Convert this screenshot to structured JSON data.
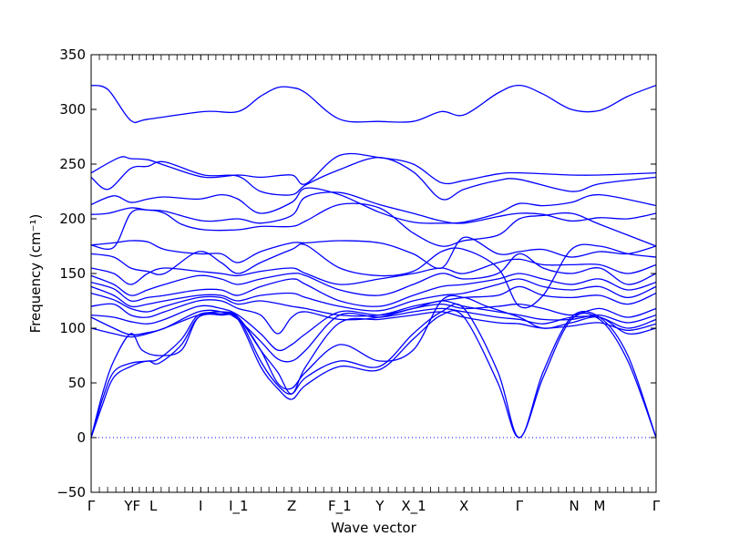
{
  "chart_data": {
    "type": "line",
    "title": "",
    "xlabel": "Wave vector",
    "ylabel": "Frequency (cm⁻¹)",
    "ylim": [
      -50,
      350
    ],
    "yticks": [
      -50,
      0,
      50,
      100,
      150,
      200,
      250,
      300,
      350
    ],
    "grid": false,
    "legend": "none",
    "series_color": "#0000ff",
    "zero_line_color": "#0000ff",
    "xlim": [
      0,
      1
    ],
    "x_ticks": [
      {
        "label": "Γ",
        "x": 0.0
      },
      {
        "label": "YF",
        "x": 0.073
      },
      {
        "label": "L",
        "x": 0.11
      },
      {
        "label": "I",
        "x": 0.194
      },
      {
        "label": "I_1",
        "x": 0.261
      },
      {
        "label": "Z",
        "x": 0.355
      },
      {
        "label": "F_1",
        "x": 0.44
      },
      {
        "label": "Y",
        "x": 0.511
      },
      {
        "label": "X_1",
        "x": 0.571
      },
      {
        "label": "X",
        "x": 0.66
      },
      {
        "label": "Γ",
        "x": 0.758
      },
      {
        "label": "N",
        "x": 0.855
      },
      {
        "label": "M",
        "x": 0.9
      },
      {
        "label": "Γ",
        "x": 1.0
      }
    ],
    "series": [
      {
        "x": [
          0,
          0.03,
          0.07,
          0.1,
          0.2,
          0.26,
          0.3,
          0.33,
          0.355,
          0.38,
          0.44,
          0.51,
          0.57,
          0.62,
          0.66,
          0.72,
          0.758,
          0.8,
          0.85,
          0.9,
          0.95,
          1.0
        ],
        "values": [
          322,
          318,
          290,
          291,
          298,
          298,
          312,
          320,
          320,
          315,
          291,
          289,
          289,
          298,
          295,
          315,
          322,
          314,
          300,
          299,
          312,
          322
        ]
      },
      {
        "x": [
          0,
          0.05,
          0.07,
          0.1,
          0.13,
          0.2,
          0.26,
          0.3,
          0.355,
          0.38,
          0.44,
          0.51,
          0.57,
          0.62,
          0.66,
          0.72,
          0.758,
          0.85,
          0.9,
          1.0
        ],
        "values": [
          242,
          256,
          255,
          254,
          249,
          238,
          240,
          238,
          240,
          232,
          258,
          256,
          250,
          233,
          235,
          241,
          242,
          240,
          240,
          242
        ]
      },
      {
        "x": [
          0,
          0.03,
          0.07,
          0.1,
          0.13,
          0.2,
          0.26,
          0.3,
          0.355,
          0.38,
          0.44,
          0.51,
          0.57,
          0.62,
          0.66,
          0.72,
          0.758,
          0.85,
          0.9,
          1.0
        ],
        "values": [
          238,
          227,
          246,
          248,
          252,
          240,
          239,
          225,
          222,
          231,
          245,
          256,
          243,
          218,
          227,
          235,
          236,
          225,
          232,
          238
        ]
      },
      {
        "x": [
          0,
          0.04,
          0.07,
          0.1,
          0.13,
          0.19,
          0.23,
          0.26,
          0.3,
          0.355,
          0.38,
          0.44,
          0.51,
          0.57,
          0.62,
          0.66,
          0.72,
          0.758,
          0.8,
          0.85,
          0.9,
          1.0
        ],
        "values": [
          213,
          221,
          215,
          218,
          220,
          218,
          222,
          218,
          205,
          215,
          228,
          222,
          206,
          197,
          196,
          197,
          205,
          214,
          212,
          215,
          222,
          212
        ]
      },
      {
        "x": [
          0,
          0.03,
          0.07,
          0.1,
          0.13,
          0.2,
          0.26,
          0.3,
          0.355,
          0.38,
          0.44,
          0.51,
          0.57,
          0.62,
          0.66,
          0.72,
          0.758,
          0.8,
          0.85,
          0.9,
          0.95,
          1.0
        ],
        "values": [
          204,
          205,
          210,
          208,
          207,
          198,
          200,
          196,
          203,
          220,
          224,
          213,
          205,
          198,
          196,
          202,
          205,
          204,
          198,
          201,
          200,
          205
        ]
      },
      {
        "x": [
          0,
          0.04,
          0.07,
          0.1,
          0.13,
          0.16,
          0.2,
          0.26,
          0.3,
          0.355,
          0.38,
          0.44,
          0.51,
          0.57,
          0.62,
          0.66,
          0.72,
          0.758,
          0.8,
          0.85,
          0.9,
          1.0
        ],
        "values": [
          176,
          174,
          205,
          208,
          205,
          195,
          190,
          190,
          193,
          193,
          198,
          213,
          210,
          187,
          175,
          180,
          185,
          200,
          203,
          205,
          195,
          175
        ]
      },
      {
        "x": [
          0,
          0.04,
          0.07,
          0.1,
          0.13,
          0.19,
          0.23,
          0.26,
          0.3,
          0.355,
          0.38,
          0.44,
          0.51,
          0.57,
          0.62,
          0.66,
          0.72,
          0.758,
          0.8,
          0.85,
          0.9,
          0.95,
          1.0
        ],
        "values": [
          176,
          178,
          180,
          179,
          172,
          168,
          168,
          160,
          170,
          178,
          178,
          180,
          178,
          168,
          155,
          183,
          168,
          170,
          172,
          165,
          170,
          168,
          175
        ]
      },
      {
        "x": [
          0,
          0.04,
          0.07,
          0.1,
          0.13,
          0.19,
          0.23,
          0.26,
          0.3,
          0.355,
          0.38,
          0.44,
          0.51,
          0.57,
          0.62,
          0.66,
          0.72,
          0.758,
          0.8,
          0.85,
          0.9,
          0.95,
          1.0
        ],
        "values": [
          168,
          165,
          155,
          152,
          150,
          170,
          160,
          150,
          160,
          172,
          176,
          155,
          148,
          152,
          170,
          172,
          155,
          120,
          130,
          172,
          175,
          168,
          165
        ]
      },
      {
        "x": [
          0,
          0.04,
          0.07,
          0.1,
          0.13,
          0.19,
          0.23,
          0.26,
          0.3,
          0.355,
          0.38,
          0.44,
          0.51,
          0.57,
          0.62,
          0.66,
          0.72,
          0.758,
          0.8,
          0.85,
          0.9,
          0.95,
          1.0
        ],
        "values": [
          155,
          150,
          140,
          150,
          155,
          152,
          150,
          148,
          152,
          155,
          150,
          140,
          145,
          150,
          155,
          150,
          160,
          163,
          158,
          158,
          158,
          150,
          158
        ]
      },
      {
        "x": [
          0,
          0.04,
          0.07,
          0.1,
          0.13,
          0.19,
          0.23,
          0.26,
          0.3,
          0.355,
          0.38,
          0.44,
          0.51,
          0.57,
          0.62,
          0.66,
          0.72,
          0.758,
          0.8,
          0.85,
          0.9,
          0.95,
          1.0
        ],
        "values": [
          148,
          140,
          130,
          135,
          140,
          148,
          145,
          140,
          145,
          150,
          148,
          135,
          130,
          140,
          150,
          145,
          150,
          168,
          155,
          150,
          155,
          140,
          150
        ]
      },
      {
        "x": [
          0,
          0.04,
          0.07,
          0.1,
          0.13,
          0.19,
          0.23,
          0.26,
          0.3,
          0.355,
          0.38,
          0.44,
          0.51,
          0.57,
          0.62,
          0.66,
          0.72,
          0.758,
          0.8,
          0.85,
          0.9,
          0.95,
          1.0
        ],
        "values": [
          142,
          136,
          125,
          128,
          130,
          135,
          135,
          130,
          138,
          145,
          140,
          125,
          120,
          130,
          138,
          140,
          145,
          150,
          145,
          140,
          145,
          135,
          142
        ]
      },
      {
        "x": [
          0,
          0.04,
          0.07,
          0.1,
          0.13,
          0.19,
          0.23,
          0.26,
          0.3,
          0.355,
          0.38,
          0.44,
          0.51,
          0.57,
          0.62,
          0.66,
          0.72,
          0.758,
          0.8,
          0.85,
          0.9,
          0.95,
          1.0
        ],
        "values": [
          138,
          130,
          120,
          122,
          125,
          130,
          130,
          125,
          130,
          132,
          128,
          120,
          116,
          125,
          130,
          132,
          140,
          145,
          138,
          135,
          138,
          128,
          138
        ]
      },
      {
        "x": [
          0,
          0.04,
          0.07,
          0.1,
          0.13,
          0.19,
          0.23,
          0.26,
          0.3,
          0.355,
          0.38,
          0.44,
          0.51,
          0.57,
          0.62,
          0.66,
          0.72,
          0.758,
          0.8,
          0.85,
          0.9,
          0.95,
          1.0
        ],
        "values": [
          132,
          126,
          118,
          115,
          120,
          128,
          128,
          122,
          125,
          120,
          118,
          112,
          112,
          120,
          125,
          128,
          130,
          138,
          130,
          128,
          130,
          122,
          132
        ]
      },
      {
        "x": [
          0,
          0.04,
          0.07,
          0.1,
          0.13,
          0.19,
          0.23,
          0.26,
          0.3,
          0.33,
          0.355,
          0.38,
          0.44,
          0.51,
          0.57,
          0.62,
          0.66,
          0.72,
          0.758,
          0.8,
          0.85,
          0.9,
          0.95,
          1.0
        ],
        "values": [
          120,
          122,
          112,
          110,
          115,
          125,
          125,
          118,
          112,
          95,
          110,
          115,
          108,
          110,
          118,
          122,
          118,
          120,
          122,
          118,
          112,
          118,
          110,
          118
        ]
      },
      {
        "x": [
          0,
          0.04,
          0.07,
          0.1,
          0.13,
          0.19,
          0.23,
          0.26,
          0.3,
          0.33,
          0.355,
          0.38,
          0.44,
          0.51,
          0.57,
          0.62,
          0.66,
          0.72,
          0.758,
          0.8,
          0.85,
          0.9,
          0.95,
          1.0
        ],
        "values": [
          112,
          110,
          106,
          104,
          108,
          120,
          118,
          112,
          95,
          80,
          85,
          95,
          115,
          112,
          118,
          125,
          120,
          115,
          112,
          108,
          108,
          112,
          105,
          112
        ]
      },
      {
        "x": [
          0,
          0.04,
          0.07,
          0.1,
          0.13,
          0.19,
          0.23,
          0.26,
          0.3,
          0.33,
          0.355,
          0.38,
          0.44,
          0.51,
          0.57,
          0.62,
          0.66,
          0.72,
          0.758,
          0.8,
          0.85,
          0.9,
          0.95,
          1.0
        ],
        "values": [
          110,
          100,
          94,
          96,
          100,
          115,
          115,
          108,
          88,
          72,
          70,
          80,
          112,
          110,
          115,
          118,
          115,
          110,
          108,
          104,
          110,
          110,
          100,
          108
        ]
      },
      {
        "x": [
          0,
          0.04,
          0.07,
          0.1,
          0.13,
          0.19,
          0.23,
          0.26,
          0.3,
          0.33,
          0.355,
          0.38,
          0.44,
          0.51,
          0.57,
          0.62,
          0.66,
          0.72,
          0.758,
          0.8,
          0.85,
          0.9,
          0.95,
          1.0
        ],
        "values": [
          100,
          95,
          92,
          95,
          100,
          112,
          115,
          110,
          80,
          60,
          40,
          65,
          105,
          108,
          112,
          115,
          110,
          105,
          104,
          100,
          102,
          105,
          98,
          104
        ]
      },
      {
        "x": [
          0,
          0.02,
          0.04,
          0.07,
          0.09,
          0.12,
          0.16,
          0.19,
          0.23,
          0.26,
          0.3,
          0.33,
          0.355,
          0.38,
          0.44,
          0.51,
          0.57,
          0.62,
          0.66,
          0.7,
          0.758,
          0.8,
          0.85,
          0.9,
          0.95,
          1.0
        ],
        "values": [
          0,
          40,
          70,
          95,
          80,
          75,
          80,
          110,
          113,
          110,
          80,
          50,
          45,
          60,
          85,
          70,
          80,
          125,
          128,
          120,
          110,
          100,
          105,
          110,
          95,
          100
        ]
      },
      {
        "x": [
          0,
          0.02,
          0.04,
          0.07,
          0.1,
          0.12,
          0.16,
          0.19,
          0.23,
          0.26,
          0.3,
          0.33,
          0.355,
          0.38,
          0.44,
          0.51,
          0.57,
          0.62,
          0.66,
          0.72,
          0.758,
          0.8,
          0.85,
          0.9,
          0.95,
          1.0
        ],
        "values": [
          0,
          35,
          60,
          68,
          70,
          72,
          90,
          112,
          113,
          110,
          70,
          48,
          40,
          55,
          70,
          65,
          95,
          115,
          118,
          60,
          0,
          60,
          110,
          110,
          75,
          0
        ]
      },
      {
        "x": [
          0,
          0.02,
          0.04,
          0.07,
          0.1,
          0.12,
          0.16,
          0.19,
          0.23,
          0.26,
          0.3,
          0.33,
          0.355,
          0.38,
          0.44,
          0.51,
          0.57,
          0.62,
          0.66,
          0.72,
          0.758,
          0.8,
          0.85,
          0.9,
          0.95,
          1.0
        ],
        "values": [
          0,
          30,
          55,
          65,
          70,
          68,
          85,
          110,
          112,
          108,
          65,
          45,
          35,
          48,
          65,
          62,
          90,
          112,
          110,
          50,
          0,
          55,
          108,
          108,
          70,
          0
        ]
      }
    ]
  }
}
